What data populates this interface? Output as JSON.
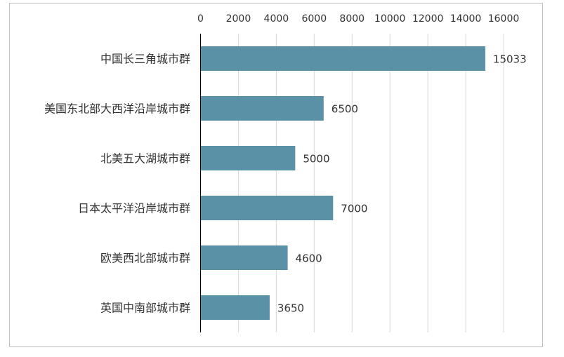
{
  "chart_data": {
    "type": "bar",
    "orientation": "horizontal",
    "categories": [
      "中国长三角城市群",
      "美国东北部大西洋沿岸城市群",
      "北美五大湖城市群",
      "日本太平洋沿岸城市群",
      "欧美西北部城市群",
      "英国中南部城市群"
    ],
    "values": [
      15033,
      6500,
      5000,
      7000,
      4600,
      3650
    ],
    "data_labels": [
      "15033",
      "6500",
      "5000",
      "7000",
      "4600",
      "3650"
    ],
    "x_ticks": [
      "0",
      "2000",
      "4000",
      "6000",
      "8000",
      "10000",
      "12000",
      "14000",
      "16000"
    ],
    "xlim": [
      0,
      16000
    ],
    "x_axis_position": "top",
    "grid": true,
    "title": "",
    "xlabel": "",
    "ylabel": "",
    "colors": {
      "bar": "#5B91A7",
      "grid": "#D9D9D9",
      "axis": "#000000",
      "text": "#333333",
      "border": "#BFBFBF"
    }
  }
}
